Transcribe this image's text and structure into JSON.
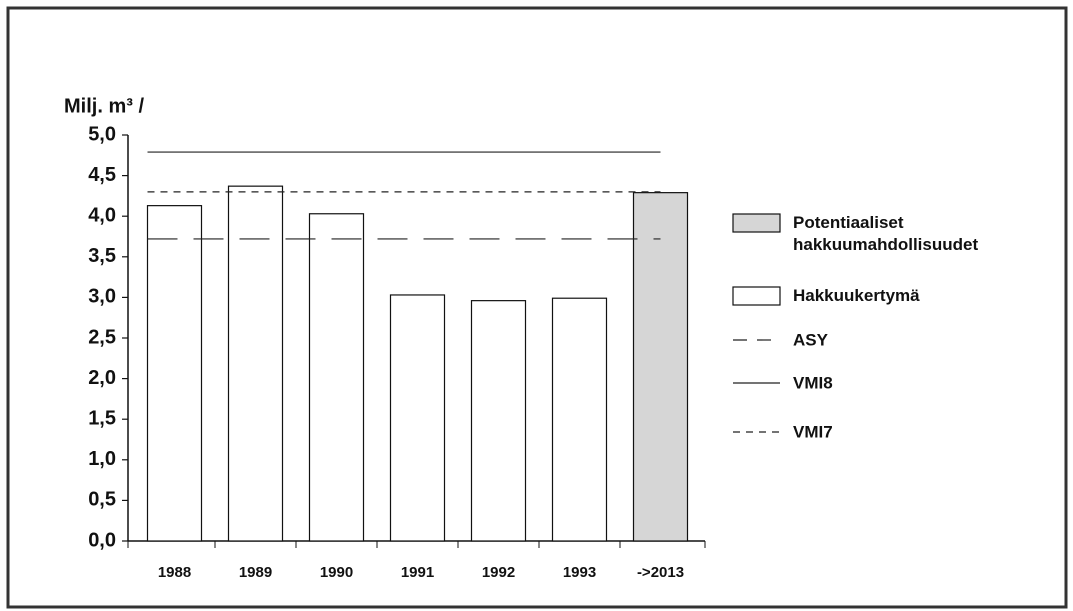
{
  "chart_data": {
    "type": "bar",
    "y_label": "Milj. m³ /",
    "categories": [
      "1988",
      "1989",
      "1990",
      "1991",
      "1992",
      "1993",
      "->2013"
    ],
    "series": [
      {
        "name": "Potentiaaliset hakkuumahdollisuudet",
        "color": "#d6d6d6",
        "values": [
          null,
          null,
          null,
          null,
          null,
          null,
          4.29
        ]
      },
      {
        "name": "Hakkuukertymä",
        "color": "#ffffff",
        "values": [
          4.13,
          4.37,
          4.03,
          3.03,
          2.96,
          2.99,
          null
        ]
      }
    ],
    "reference_lines": [
      {
        "name": "ASY",
        "value": 3.72,
        "dash": "long"
      },
      {
        "name": "VMI8",
        "value": 4.79,
        "dash": "solid"
      },
      {
        "name": "VMI7",
        "value": 4.3,
        "dash": "short"
      }
    ],
    "ylim": [
      0,
      5
    ],
    "yticks": [
      {
        "value": 0,
        "label": "0,0"
      },
      {
        "value": 0.5,
        "label": "0,5"
      },
      {
        "value": 1,
        "label": "1,0"
      },
      {
        "value": 1.5,
        "label": "1,5"
      },
      {
        "value": 2,
        "label": "2,0"
      },
      {
        "value": 2.5,
        "label": "2,5"
      },
      {
        "value": 3,
        "label": "3,0"
      },
      {
        "value": 3.5,
        "label": "3,5"
      },
      {
        "value": 4,
        "label": "4,0"
      },
      {
        "value": 4.5,
        "label": "4,5"
      },
      {
        "value": 5,
        "label": "5,0"
      }
    ],
    "grid": false
  }
}
